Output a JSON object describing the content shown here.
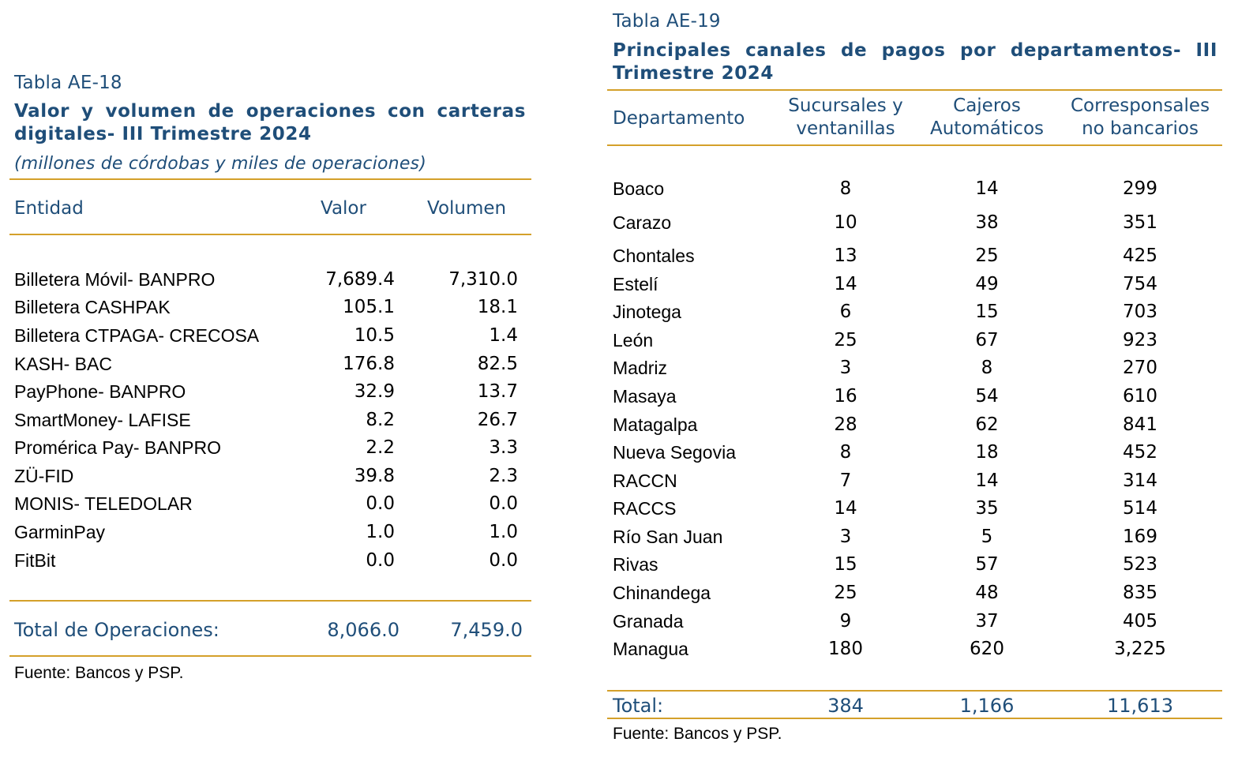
{
  "left_table": {
    "caption": "Tabla AE-18",
    "title": "Valor y volumen de operaciones con carteras digitales- III Trimestre 2024",
    "subtitle": "(millones de córdobas y miles de operaciones)",
    "headers": {
      "entity": "Entidad",
      "value": "Valor",
      "volume": "Volumen"
    },
    "rows": [
      {
        "entity": "Billetera Móvil- BANPRO",
        "value": "7,689.4",
        "volume": "7,310.0"
      },
      {
        "entity": "Billetera CASHPAK",
        "value": "105.1",
        "volume": "18.1"
      },
      {
        "entity": "Billetera CTPAGA- CRECOSA",
        "value": "10.5",
        "volume": "1.4"
      },
      {
        "entity": "KASH- BAC",
        "value": "176.8",
        "volume": "82.5"
      },
      {
        "entity": "PayPhone- BANPRO",
        "value": "32.9",
        "volume": "13.7"
      },
      {
        "entity": "SmartMoney- LAFISE",
        "value": "8.2",
        "volume": "26.7"
      },
      {
        "entity": "Promérica Pay- BANPRO",
        "value": "2.2",
        "volume": "3.3"
      },
      {
        "entity": "ZÜ-FID",
        "value": "39.8",
        "volume": "2.3"
      },
      {
        "entity": "MONIS- TELEDOLAR",
        "value": "0.0",
        "volume": "0.0"
      },
      {
        "entity": "GarminPay",
        "value": "1.0",
        "volume": "1.0"
      },
      {
        "entity": "FitBit",
        "value": "0.0",
        "volume": "0.0"
      }
    ],
    "total": {
      "label": "Total de Operaciones:",
      "value": "8,066.0",
      "volume": "7,459.0"
    },
    "source": "Fuente: Bancos y PSP."
  },
  "right_table": {
    "caption": "Tabla AE-19",
    "title": "Principales canales de pagos por departamentos- III Trimestre 2024",
    "headers": {
      "department": "Departamento",
      "branches_line1": "Sucursales y",
      "branches_line2": "ventanillas",
      "atms_line1": "Cajeros",
      "atms_line2": "Automáticos",
      "agents_line1": "Corresponsales",
      "agents_line2": "no bancarios"
    },
    "rows": [
      {
        "department": "Boaco",
        "branches": "8",
        "atms": "14",
        "agents": "299"
      },
      {
        "department": "Carazo",
        "branches": "10",
        "atms": "38",
        "agents": "351"
      },
      {
        "department": "Chontales",
        "branches": "13",
        "atms": "25",
        "agents": "425"
      },
      {
        "department": "Estelí",
        "branches": "14",
        "atms": "49",
        "agents": "754"
      },
      {
        "department": "Jinotega",
        "branches": "6",
        "atms": "15",
        "agents": "703"
      },
      {
        "department": "León",
        "branches": "25",
        "atms": "67",
        "agents": "923"
      },
      {
        "department": "Madriz",
        "branches": "3",
        "atms": "8",
        "agents": "270"
      },
      {
        "department": "Masaya",
        "branches": "16",
        "atms": "54",
        "agents": "610"
      },
      {
        "department": "Matagalpa",
        "branches": "28",
        "atms": "62",
        "agents": "841"
      },
      {
        "department": "Nueva Segovia",
        "branches": "8",
        "atms": "18",
        "agents": "452"
      },
      {
        "department": "RACCN",
        "branches": "7",
        "atms": "14",
        "agents": "314"
      },
      {
        "department": "RACCS",
        "branches": "14",
        "atms": "35",
        "agents": "514"
      },
      {
        "department": "Río San Juan",
        "branches": "3",
        "atms": "5",
        "agents": "169"
      },
      {
        "department": "Rivas",
        "branches": "15",
        "atms": "57",
        "agents": "523"
      },
      {
        "department": "Chinandega",
        "branches": "25",
        "atms": "48",
        "agents": "835"
      },
      {
        "department": "Granada",
        "branches": "9",
        "atms": "37",
        "agents": "405"
      },
      {
        "department": "Managua",
        "branches": "180",
        "atms": "620",
        "agents": "3,225"
      }
    ],
    "total": {
      "label": "Total:",
      "branches": "384",
      "atms": "1,166",
      "agents": "11,613"
    },
    "source": "Fuente: Bancos y PSP."
  }
}
